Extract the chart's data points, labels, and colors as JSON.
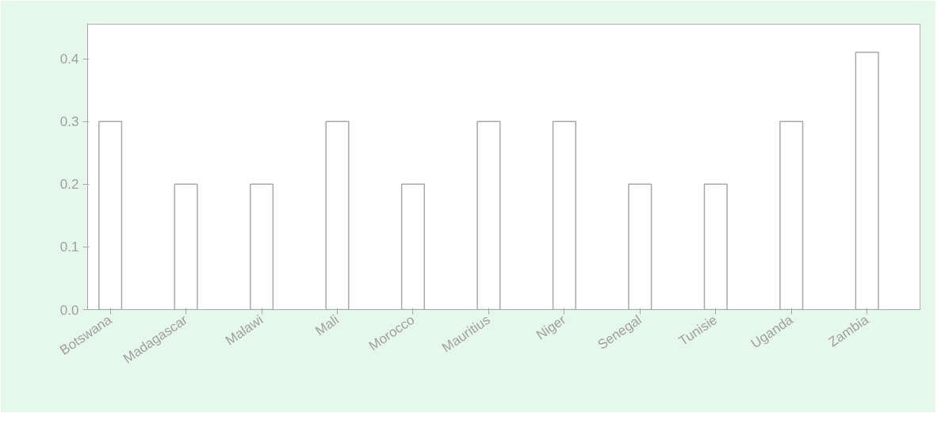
{
  "chart_data": {
    "type": "bar",
    "categories": [
      "Botswana",
      "Madagascar",
      "Malawi",
      "Mali",
      "Morocco",
      "Mauritius",
      "Niger",
      "Senegal",
      "Tunisie",
      "Uganda",
      "Zambia"
    ],
    "values": [
      0.3,
      0.2,
      0.2,
      0.3,
      0.2,
      0.3,
      0.3,
      0.2,
      0.2,
      0.3,
      0.41
    ],
    "color": "#ffffff",
    "ylim": [
      0,
      0.455
    ],
    "yticks": [
      {
        "value": 0,
        "label": "0.0"
      },
      0.1,
      0.2,
      0.3,
      0.4
    ],
    "grid": false
  }
}
